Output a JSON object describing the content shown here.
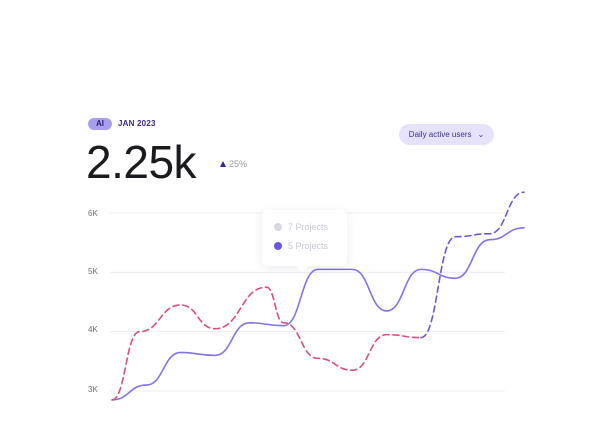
{
  "badge": {
    "label": "AI"
  },
  "period": {
    "label": "JAN 2023"
  },
  "metric": {
    "value": "2.25k",
    "delta": "25%"
  },
  "metric_selector": {
    "label": "Daily active users",
    "chevron_icon": "chevron-down-icon"
  },
  "tooltip": {
    "rows": [
      {
        "label": "7 Projects",
        "color": "#d9d8e0"
      },
      {
        "label": "5 Projects",
        "color": "#6a57e0"
      }
    ]
  },
  "colors": {
    "accent_purple": "#8174e4",
    "accent_pink": "#d9507a",
    "badge_bg": "#a89ef0",
    "dropdown_bg": "#e6e2fb"
  },
  "chart_data": {
    "type": "line",
    "y_ticks": [
      "6K",
      "5K",
      "4K",
      "3K"
    ],
    "ylim": [
      2800,
      6400
    ],
    "grid": true,
    "series": [
      {
        "style": "solid",
        "color": "#8174e4",
        "x": [
          0,
          1,
          2,
          3,
          4,
          5,
          6,
          7,
          8,
          9,
          10,
          11,
          12
        ],
        "y": [
          2850,
          3100,
          3650,
          3600,
          4150,
          4100,
          5050,
          5050,
          4350,
          5050,
          4900,
          5550,
          5750
        ]
      },
      {
        "style": "dashed",
        "color": "#d9507a",
        "x": [
          0,
          0.8,
          2,
          3,
          4.5,
          5,
          6,
          7,
          8,
          9
        ],
        "y": [
          2850,
          4000,
          4450,
          4050,
          4750,
          4150,
          3550,
          3350,
          3950,
          3900
        ]
      },
      {
        "style": "dashed",
        "color": "#6a5ad8",
        "x": [
          9,
          10,
          11,
          12
        ],
        "y": [
          3900,
          5600,
          5650,
          6350
        ]
      }
    ]
  }
}
